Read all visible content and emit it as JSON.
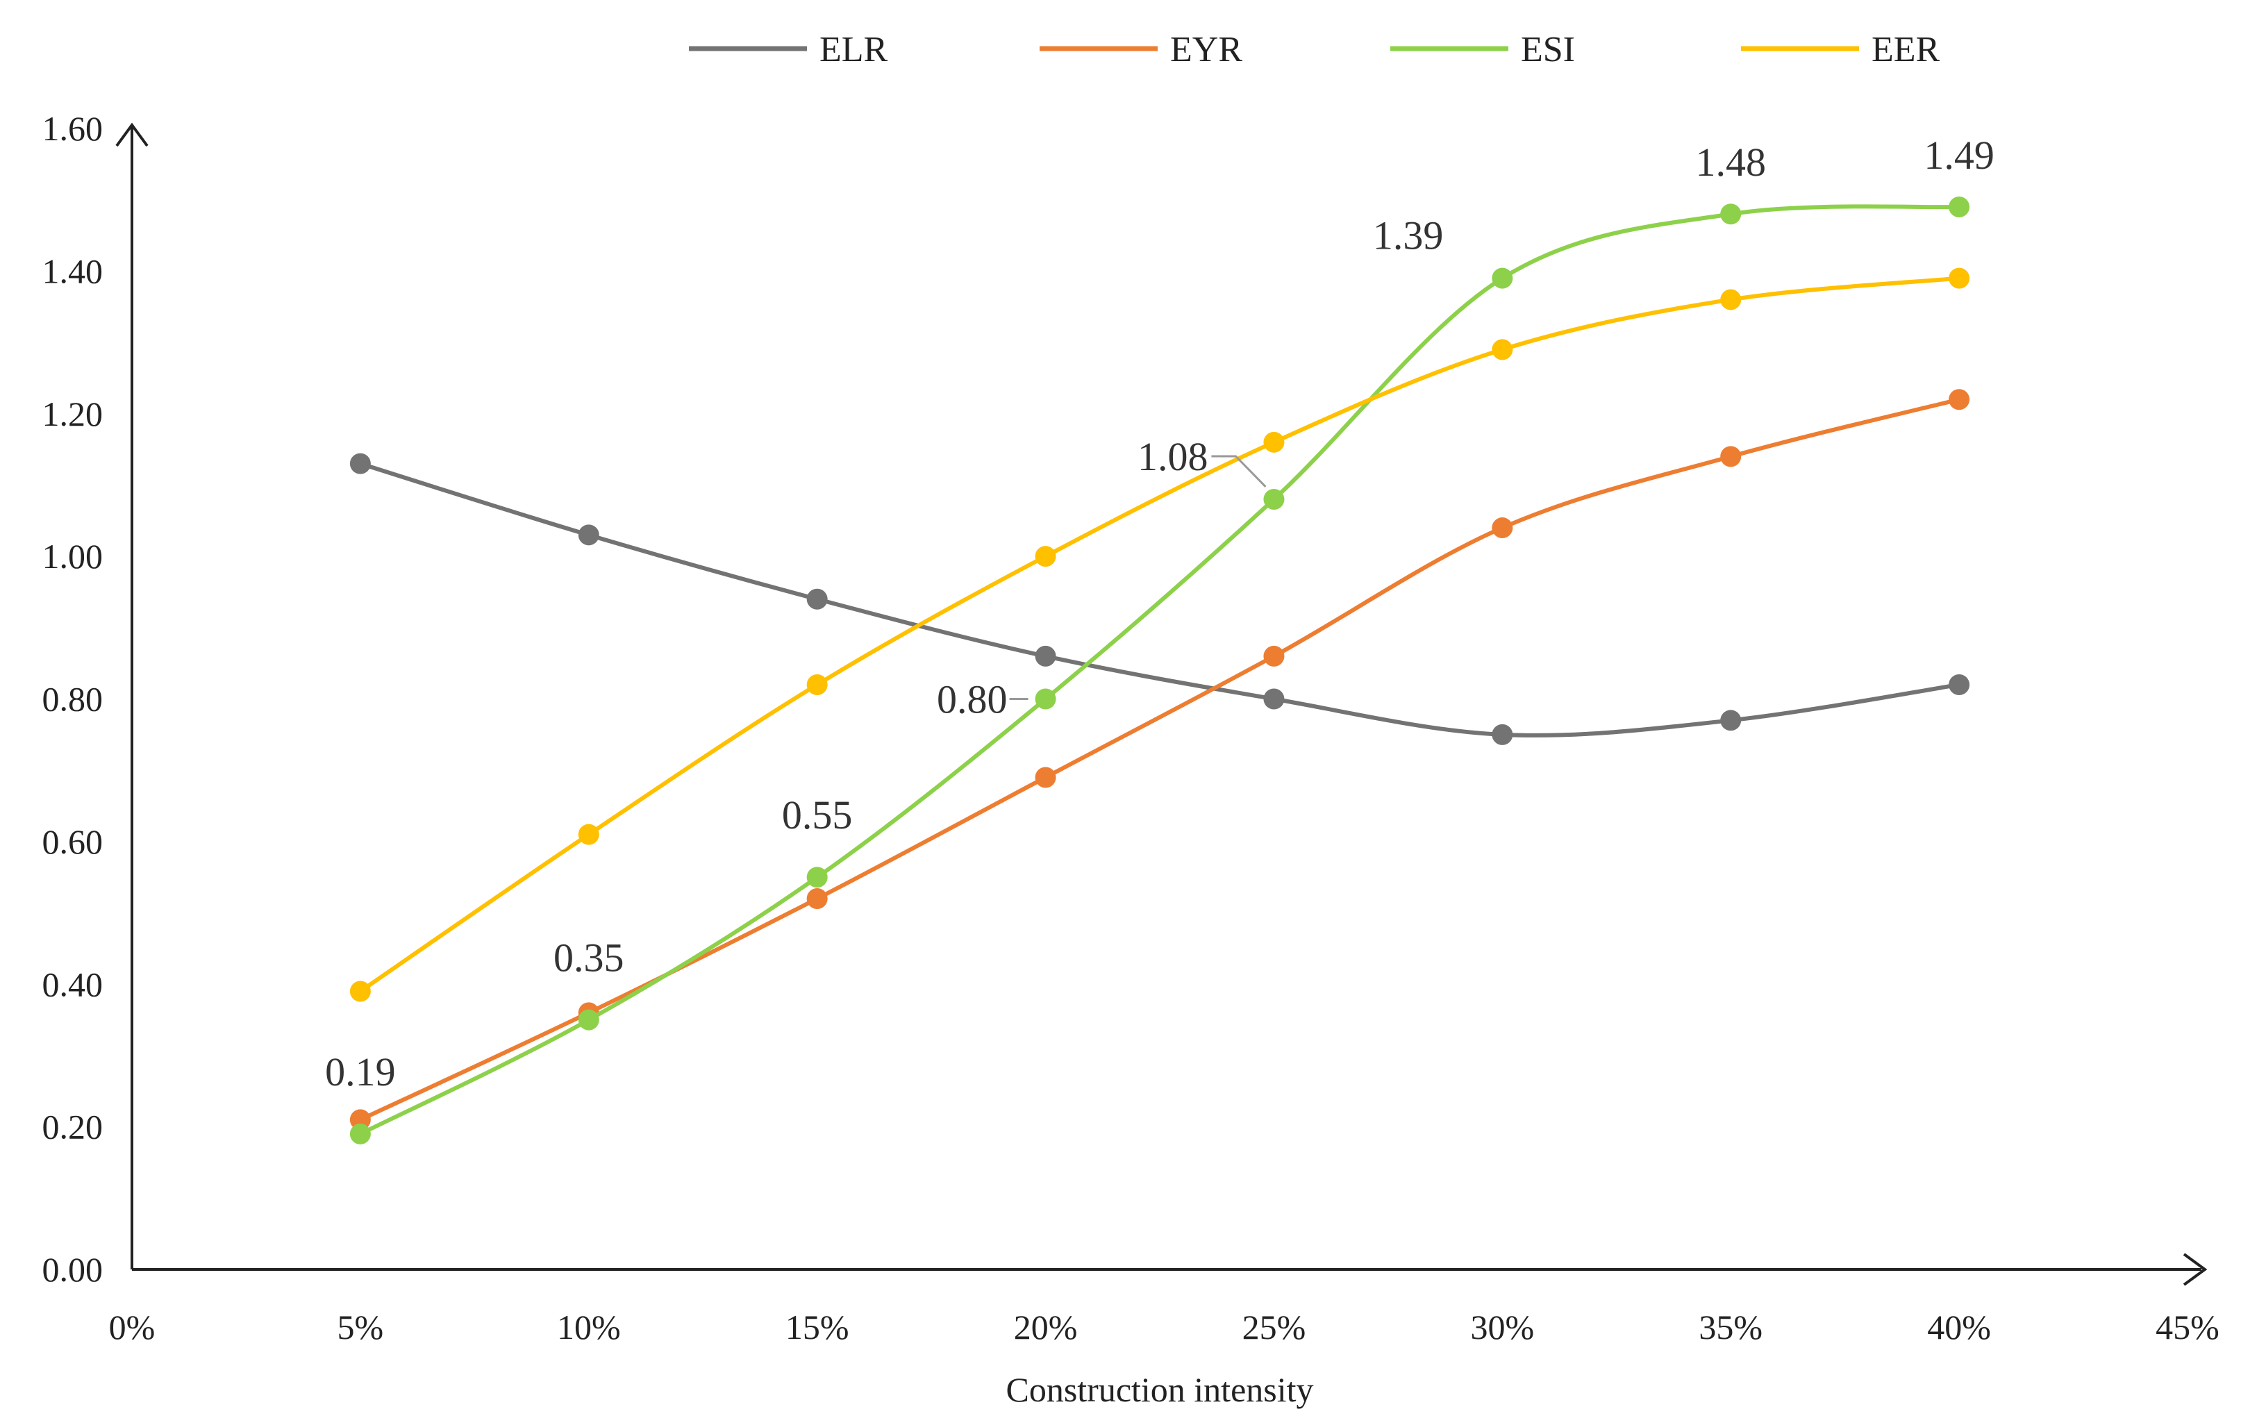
{
  "chart_data": {
    "type": "line",
    "title": "",
    "xlabel": "Construction intensity",
    "ylabel": "",
    "xlim": [
      0,
      45
    ],
    "ylim": [
      0,
      1.6
    ],
    "x_ticks": [
      "0%",
      "5%",
      "10%",
      "15%",
      "20%",
      "25%",
      "30%",
      "35%",
      "40%",
      "45%"
    ],
    "y_ticks": [
      "0.00",
      "0.20",
      "0.40",
      "0.60",
      "0.80",
      "1.00",
      "1.20",
      "1.40",
      "1.60"
    ],
    "x": [
      5,
      10,
      15,
      20,
      25,
      30,
      35,
      40
    ],
    "legend_position": "top-center",
    "grid": false,
    "smooth": true,
    "series": [
      {
        "name": "ELR",
        "color": "#737373",
        "values": [
          1.13,
          1.03,
          0.94,
          0.86,
          0.8,
          0.75,
          0.77,
          0.82
        ]
      },
      {
        "name": "EYR",
        "color": "#ED7D31",
        "values": [
          0.21,
          0.36,
          0.52,
          0.69,
          0.86,
          1.04,
          1.14,
          1.22
        ]
      },
      {
        "name": "ESI",
        "color": "#8DD14A",
        "values": [
          0.19,
          0.35,
          0.55,
          0.8,
          1.08,
          1.39,
          1.48,
          1.49
        ]
      },
      {
        "name": "EER",
        "color": "#FFC000",
        "values": [
          0.39,
          0.61,
          0.82,
          1.0,
          1.16,
          1.29,
          1.36,
          1.39
        ]
      }
    ],
    "data_labels": [
      {
        "series": "ESI",
        "x": 5,
        "text": "0.19"
      },
      {
        "series": "ESI",
        "x": 10,
        "text": "0.35"
      },
      {
        "series": "ESI",
        "x": 15,
        "text": "0.55"
      },
      {
        "series": "ESI",
        "x": 20,
        "text": "0.80"
      },
      {
        "series": "ESI",
        "x": 25,
        "text": "1.08"
      },
      {
        "series": "ESI",
        "x": 30,
        "text": "1.39"
      },
      {
        "series": "ESI",
        "x": 35,
        "text": "1.48"
      },
      {
        "series": "ESI",
        "x": 40,
        "text": "1.49"
      }
    ]
  }
}
